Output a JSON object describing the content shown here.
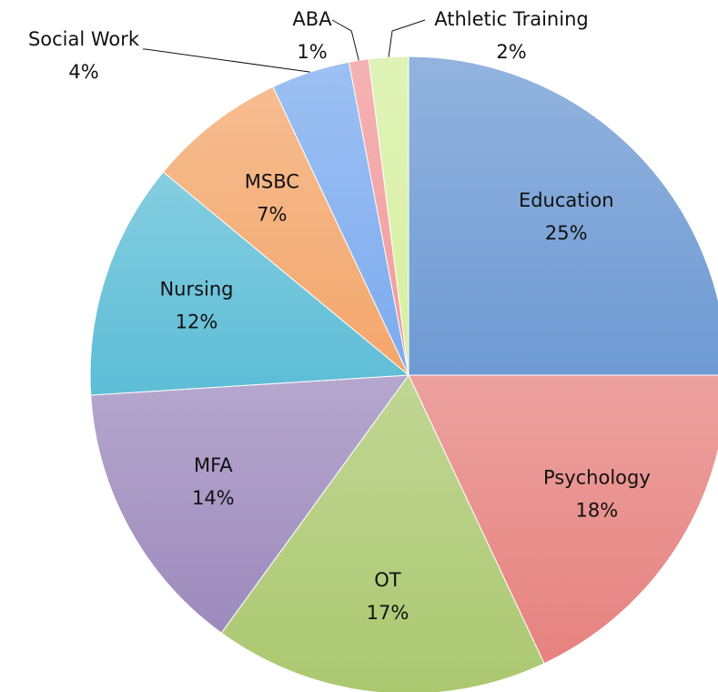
{
  "chart_data": {
    "type": "pie",
    "categories": [
      "Education",
      "Psychology",
      "OT",
      "MFA",
      "Nursing",
      "MSBC",
      "Social Work",
      "ABA",
      "Athletic Training"
    ],
    "values": [
      25,
      18,
      17,
      14,
      12,
      7,
      4,
      1,
      2
    ],
    "value_labels": [
      "25%",
      "18%",
      "17%",
      "14%",
      "12%",
      "7%",
      "4%",
      "1%",
      "2%"
    ],
    "colors": [
      "#6e9ad3",
      "#e6827f",
      "#abc870",
      "#9d8abd",
      "#5cbdd6",
      "#f3a66b",
      "#7cabef",
      "#f2999a",
      "#d6efa0"
    ]
  }
}
